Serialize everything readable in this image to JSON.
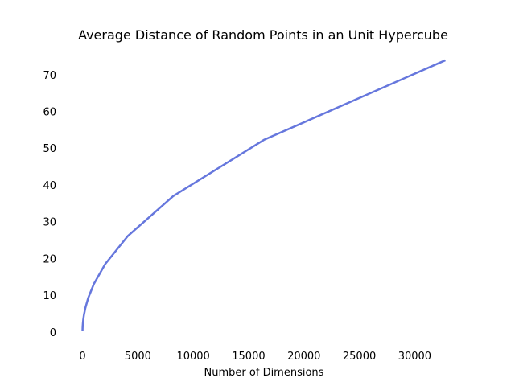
{
  "chart_data": {
    "type": "line",
    "title": "Average Distance of Random Points in an Unit Hypercube",
    "xlabel": "Number of Dimensions",
    "ylabel": "",
    "xlim": [
      -1638,
      34406
    ],
    "ylim": [
      -3.1,
      77.6
    ],
    "x_ticks": [
      0,
      5000,
      10000,
      15000,
      20000,
      25000,
      30000
    ],
    "y_ticks": [
      0,
      10,
      20,
      30,
      40,
      50,
      60,
      70
    ],
    "grid": false,
    "legend": "none",
    "series": [
      {
        "color": "#6677dd",
        "x": [
          1,
          2,
          4,
          8,
          16,
          32,
          64,
          128,
          256,
          512,
          1024,
          2048,
          4096,
          8192,
          16384,
          32768
        ],
        "values": [
          0.33,
          0.52,
          0.78,
          1.13,
          1.61,
          2.29,
          3.26,
          4.61,
          6.53,
          9.23,
          13.06,
          18.47,
          26.12,
          36.95,
          52.25,
          73.9
        ]
      }
    ]
  }
}
